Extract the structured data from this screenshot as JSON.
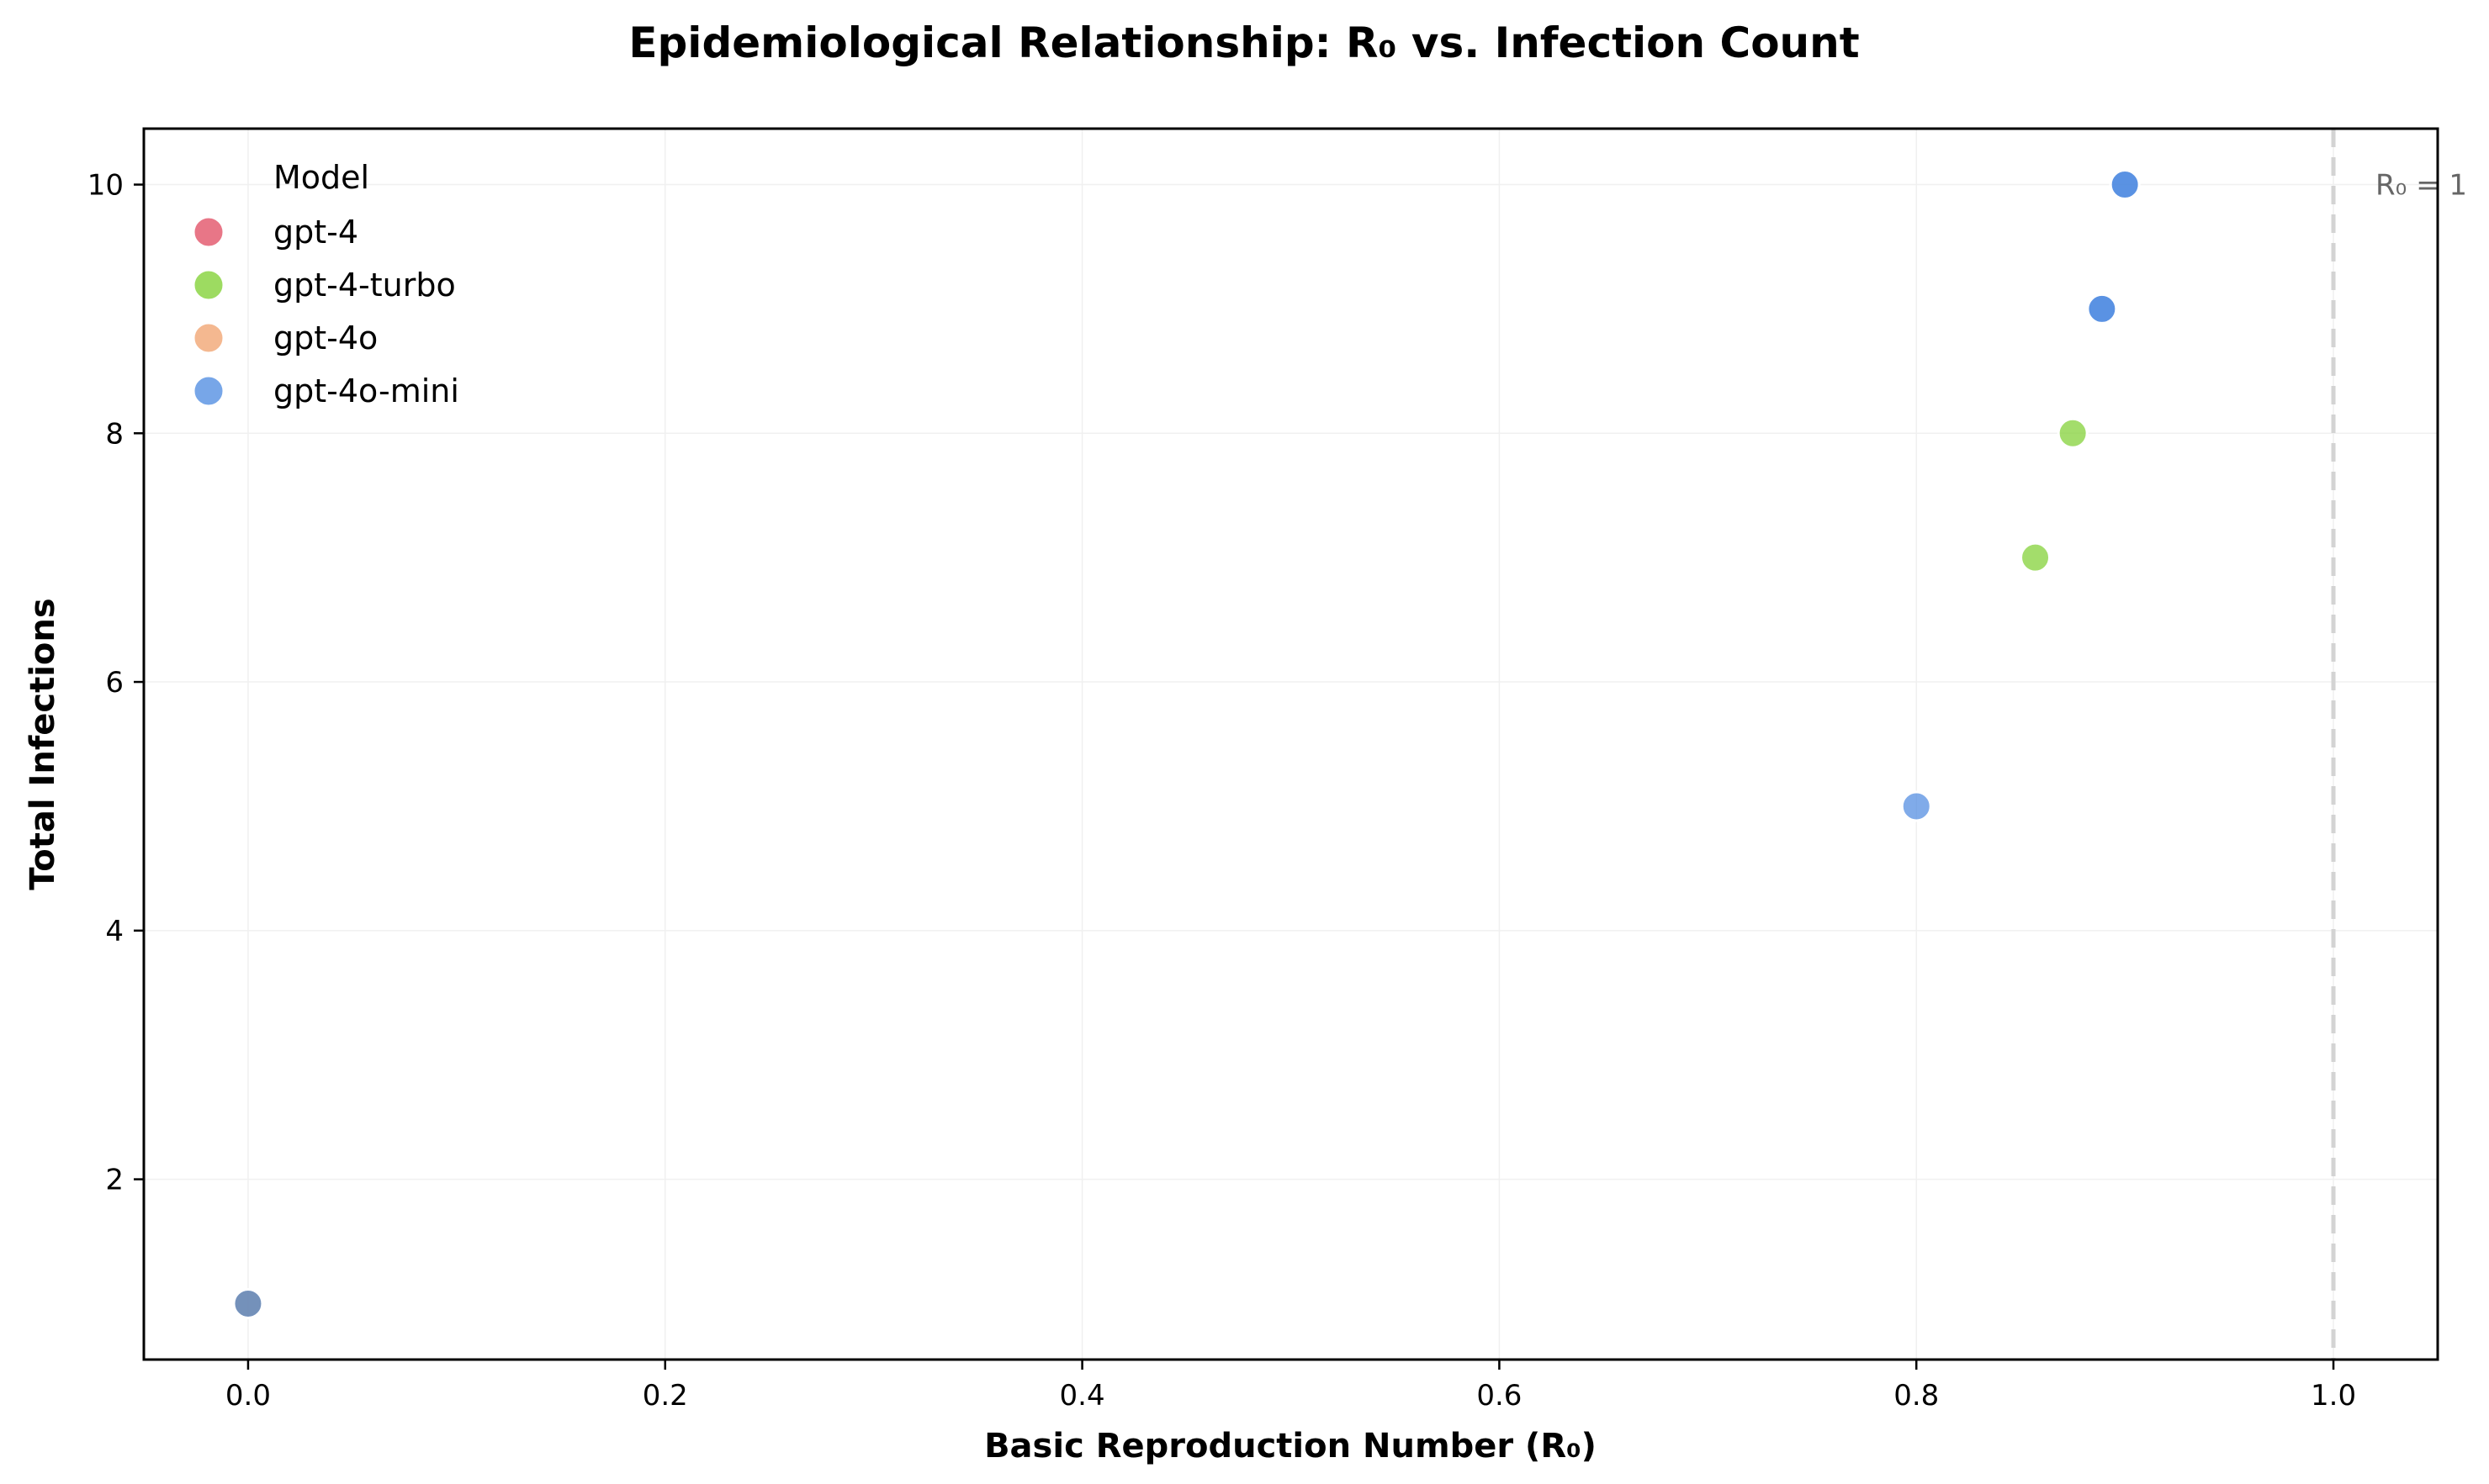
{
  "chart_data": {
    "type": "scatter",
    "title": "Epidemiological Relationship: R₀ vs. Infection Count",
    "xlabel": "Basic Reproduction Number (R₀)",
    "ylabel": "Total Infections",
    "xlim": [
      -0.05,
      1.05
    ],
    "ylim": [
      0.55,
      10.45
    ],
    "xticks": [
      0.0,
      0.2,
      0.4,
      0.6,
      0.8,
      1.0
    ],
    "xtick_labels": [
      "0.0",
      "0.2",
      "0.4",
      "0.6",
      "0.8",
      "1.0"
    ],
    "yticks": [
      2,
      4,
      6,
      8,
      10
    ],
    "ytick_labels": [
      "2",
      "4",
      "6",
      "8",
      "10"
    ],
    "grid": true,
    "legend": {
      "title": "Model",
      "position": "top-left"
    },
    "reference_line": {
      "x": 1.0,
      "label": "R₀ = 1",
      "color": "#d3d3d3",
      "style": "dashed"
    },
    "series": [
      {
        "name": "gpt-4",
        "color": "#e0485f",
        "x": [
          0.0
        ],
        "y": [
          1
        ]
      },
      {
        "name": "gpt-4-turbo",
        "color": "#7ccf2c",
        "x": [
          0.0,
          0.857,
          0.875
        ],
        "y": [
          1,
          7,
          8
        ]
      },
      {
        "name": "gpt-4o",
        "color": "#f0a06b",
        "x": [
          0.0
        ],
        "y": [
          1
        ]
      },
      {
        "name": "gpt-4o-mini",
        "color": "#4a88e0",
        "x": [
          0.0,
          0.8,
          0.889,
          0.9,
          0.889,
          0.9
        ],
        "y": [
          1,
          5,
          9,
          10,
          9,
          10
        ]
      }
    ]
  }
}
